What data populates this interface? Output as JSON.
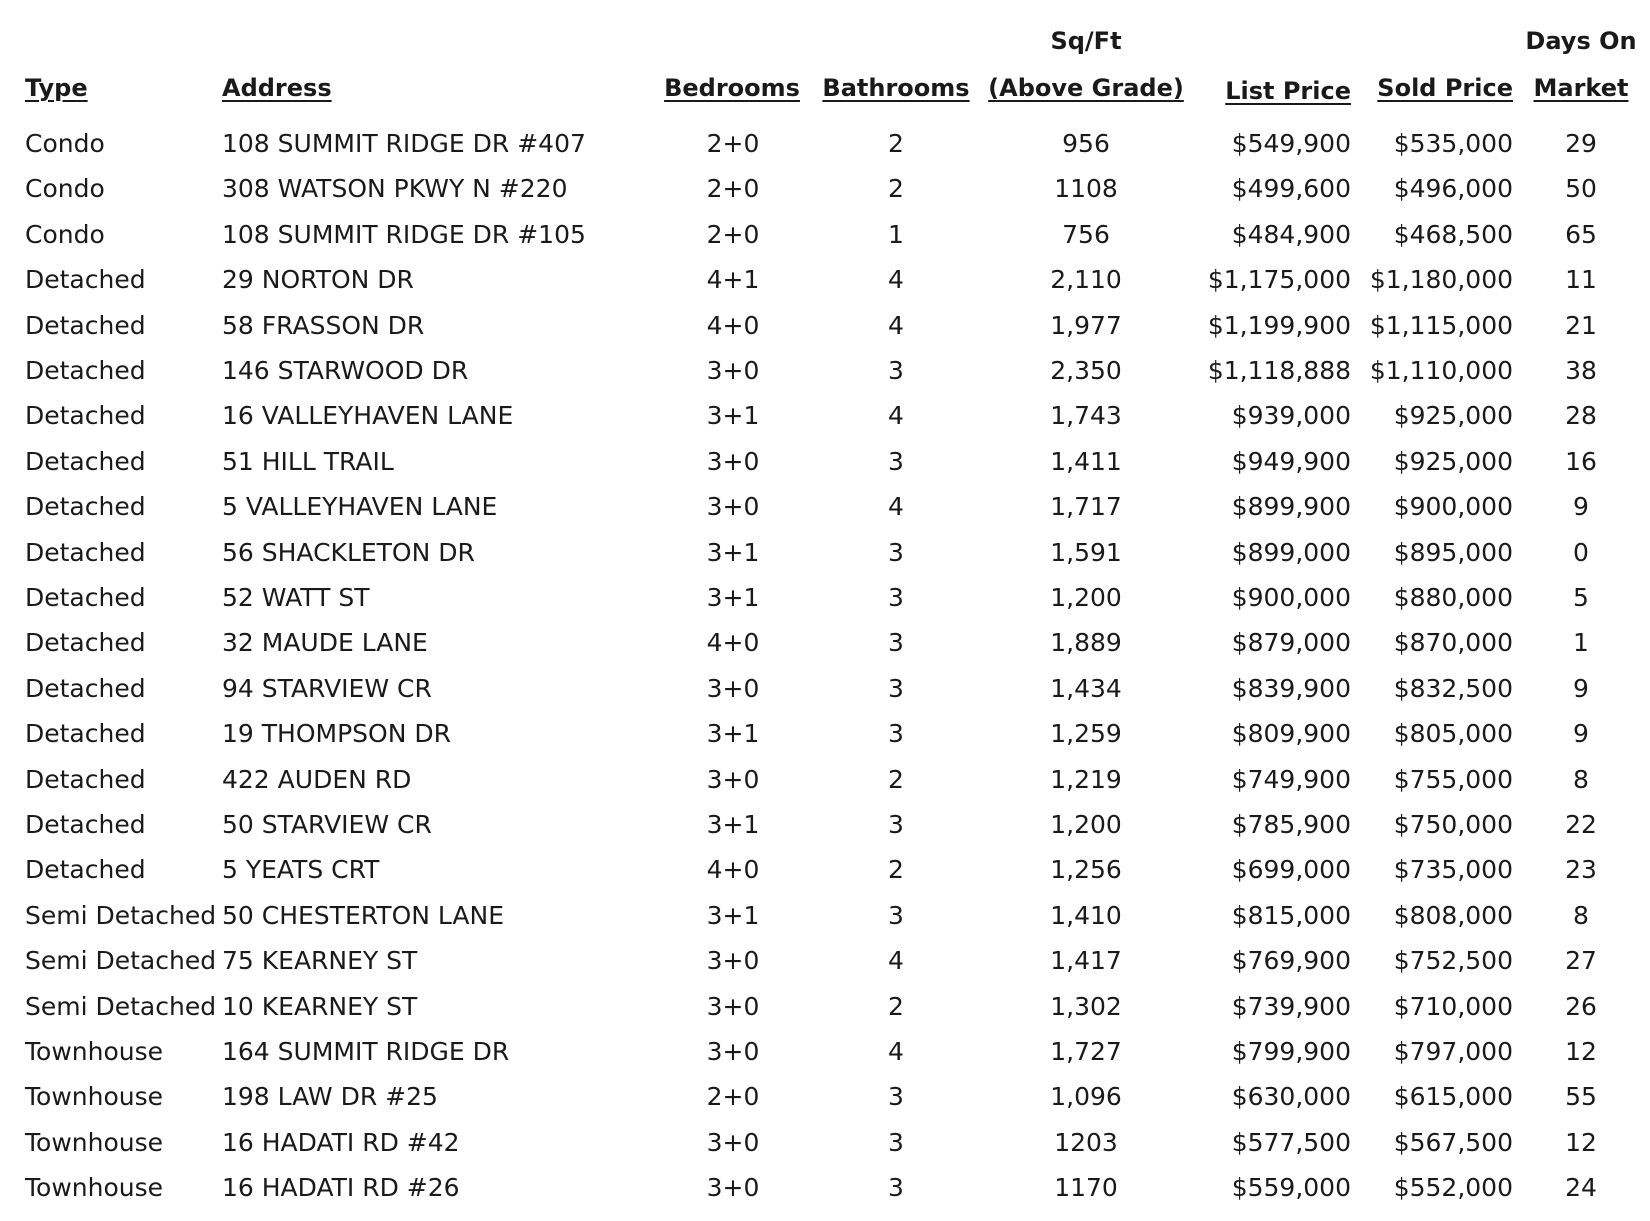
{
  "headers": {
    "type": "Type",
    "address": "Address",
    "bedrooms": "Bedrooms",
    "bathrooms": "Bathrooms",
    "sqft_line1": "Sq/Ft",
    "sqft_line2": "(Above Grade)",
    "list_price": "List Price",
    "sold_price": "Sold Price",
    "dom_line1": "Days On",
    "dom_line2": "Market"
  },
  "rows": [
    {
      "type": "Condo",
      "address": "108 SUMMIT RIDGE DR #407",
      "bedrooms": "2+0",
      "bathrooms": "2",
      "sqft": "956",
      "list_price": "$549,900",
      "sold_price": "$535,000",
      "dom": "29"
    },
    {
      "type": "Condo",
      "address": "308 WATSON PKWY N #220",
      "bedrooms": "2+0",
      "bathrooms": "2",
      "sqft": "1108",
      "list_price": "$499,600",
      "sold_price": "$496,000",
      "dom": "50"
    },
    {
      "type": "Condo",
      "address": "108 SUMMIT RIDGE DR #105",
      "bedrooms": "2+0",
      "bathrooms": "1",
      "sqft": "756",
      "list_price": "$484,900",
      "sold_price": "$468,500",
      "dom": "65"
    },
    {
      "type": "Detached",
      "address": "29 NORTON DR",
      "bedrooms": "4+1",
      "bathrooms": "4",
      "sqft": "2,110",
      "list_price": "$1,175,000",
      "sold_price": "$1,180,000",
      "dom": "11"
    },
    {
      "type": "Detached",
      "address": "58 FRASSON DR",
      "bedrooms": "4+0",
      "bathrooms": "4",
      "sqft": "1,977",
      "list_price": "$1,199,900",
      "sold_price": "$1,115,000",
      "dom": "21"
    },
    {
      "type": "Detached",
      "address": "146 STARWOOD DR",
      "bedrooms": "3+0",
      "bathrooms": "3",
      "sqft": "2,350",
      "list_price": "$1,118,888",
      "sold_price": "$1,110,000",
      "dom": "38"
    },
    {
      "type": "Detached",
      "address": "16 VALLEYHAVEN LANE",
      "bedrooms": "3+1",
      "bathrooms": "4",
      "sqft": "1,743",
      "list_price": "$939,000",
      "sold_price": "$925,000",
      "dom": "28"
    },
    {
      "type": "Detached",
      "address": "51 HILL TRAIL",
      "bedrooms": "3+0",
      "bathrooms": "3",
      "sqft": "1,411",
      "list_price": "$949,900",
      "sold_price": "$925,000",
      "dom": "16"
    },
    {
      "type": "Detached",
      "address": "5 VALLEYHAVEN LANE",
      "bedrooms": "3+0",
      "bathrooms": "4",
      "sqft": "1,717",
      "list_price": "$899,900",
      "sold_price": "$900,000",
      "dom": "9"
    },
    {
      "type": "Detached",
      "address": "56 SHACKLETON DR",
      "bedrooms": "3+1",
      "bathrooms": "3",
      "sqft": "1,591",
      "list_price": "$899,000",
      "sold_price": "$895,000",
      "dom": "0"
    },
    {
      "type": "Detached",
      "address": "52 WATT ST",
      "bedrooms": "3+1",
      "bathrooms": "3",
      "sqft": "1,200",
      "list_price": "$900,000",
      "sold_price": "$880,000",
      "dom": "5"
    },
    {
      "type": "Detached",
      "address": "32 MAUDE LANE",
      "bedrooms": "4+0",
      "bathrooms": "3",
      "sqft": "1,889",
      "list_price": "$879,000",
      "sold_price": "$870,000",
      "dom": "1"
    },
    {
      "type": "Detached",
      "address": "94 STARVIEW CR",
      "bedrooms": "3+0",
      "bathrooms": "3",
      "sqft": "1,434",
      "list_price": "$839,900",
      "sold_price": "$832,500",
      "dom": "9"
    },
    {
      "type": "Detached",
      "address": "19 THOMPSON DR",
      "bedrooms": "3+1",
      "bathrooms": "3",
      "sqft": "1,259",
      "list_price": "$809,900",
      "sold_price": "$805,000",
      "dom": "9"
    },
    {
      "type": "Detached",
      "address": "422 AUDEN RD",
      "bedrooms": "3+0",
      "bathrooms": "2",
      "sqft": "1,219",
      "list_price": "$749,900",
      "sold_price": "$755,000",
      "dom": "8"
    },
    {
      "type": "Detached",
      "address": "50 STARVIEW CR",
      "bedrooms": "3+1",
      "bathrooms": "3",
      "sqft": "1,200",
      "list_price": "$785,900",
      "sold_price": "$750,000",
      "dom": "22"
    },
    {
      "type": "Detached",
      "address": "5 YEATS CRT",
      "bedrooms": "4+0",
      "bathrooms": "2",
      "sqft": "1,256",
      "list_price": "$699,000",
      "sold_price": "$735,000",
      "dom": "23"
    },
    {
      "type": "Semi Detached",
      "address": "50 CHESTERTON LANE",
      "bedrooms": "3+1",
      "bathrooms": "3",
      "sqft": "1,410",
      "list_price": "$815,000",
      "sold_price": "$808,000",
      "dom": "8"
    },
    {
      "type": "Semi Detached",
      "address": "75 KEARNEY ST",
      "bedrooms": "3+0",
      "bathrooms": "4",
      "sqft": "1,417",
      "list_price": "$769,900",
      "sold_price": "$752,500",
      "dom": "27"
    },
    {
      "type": "Semi Detached",
      "address": "10 KEARNEY ST",
      "bedrooms": "3+0",
      "bathrooms": "2",
      "sqft": "1,302",
      "list_price": "$739,900",
      "sold_price": "$710,000",
      "dom": "26"
    },
    {
      "type": "Townhouse",
      "address": "164 SUMMIT RIDGE DR",
      "bedrooms": "3+0",
      "bathrooms": "4",
      "sqft": "1,727",
      "list_price": "$799,900",
      "sold_price": "$797,000",
      "dom": "12"
    },
    {
      "type": "Townhouse",
      "address": "198 LAW DR #25",
      "bedrooms": "2+0",
      "bathrooms": "3",
      "sqft": "1,096",
      "list_price": "$630,000",
      "sold_price": "$615,000",
      "dom": "55"
    },
    {
      "type": "Townhouse",
      "address": "16 HADATI RD #42",
      "bedrooms": "3+0",
      "bathrooms": "3",
      "sqft": "1203",
      "list_price": "$577,500",
      "sold_price": "$567,500",
      "dom": "12"
    },
    {
      "type": "Townhouse",
      "address": "16 HADATI RD #26",
      "bedrooms": "3+0",
      "bathrooms": "3",
      "sqft": "1170",
      "list_price": "$559,000",
      "sold_price": "$552,000",
      "dom": "24"
    }
  ]
}
